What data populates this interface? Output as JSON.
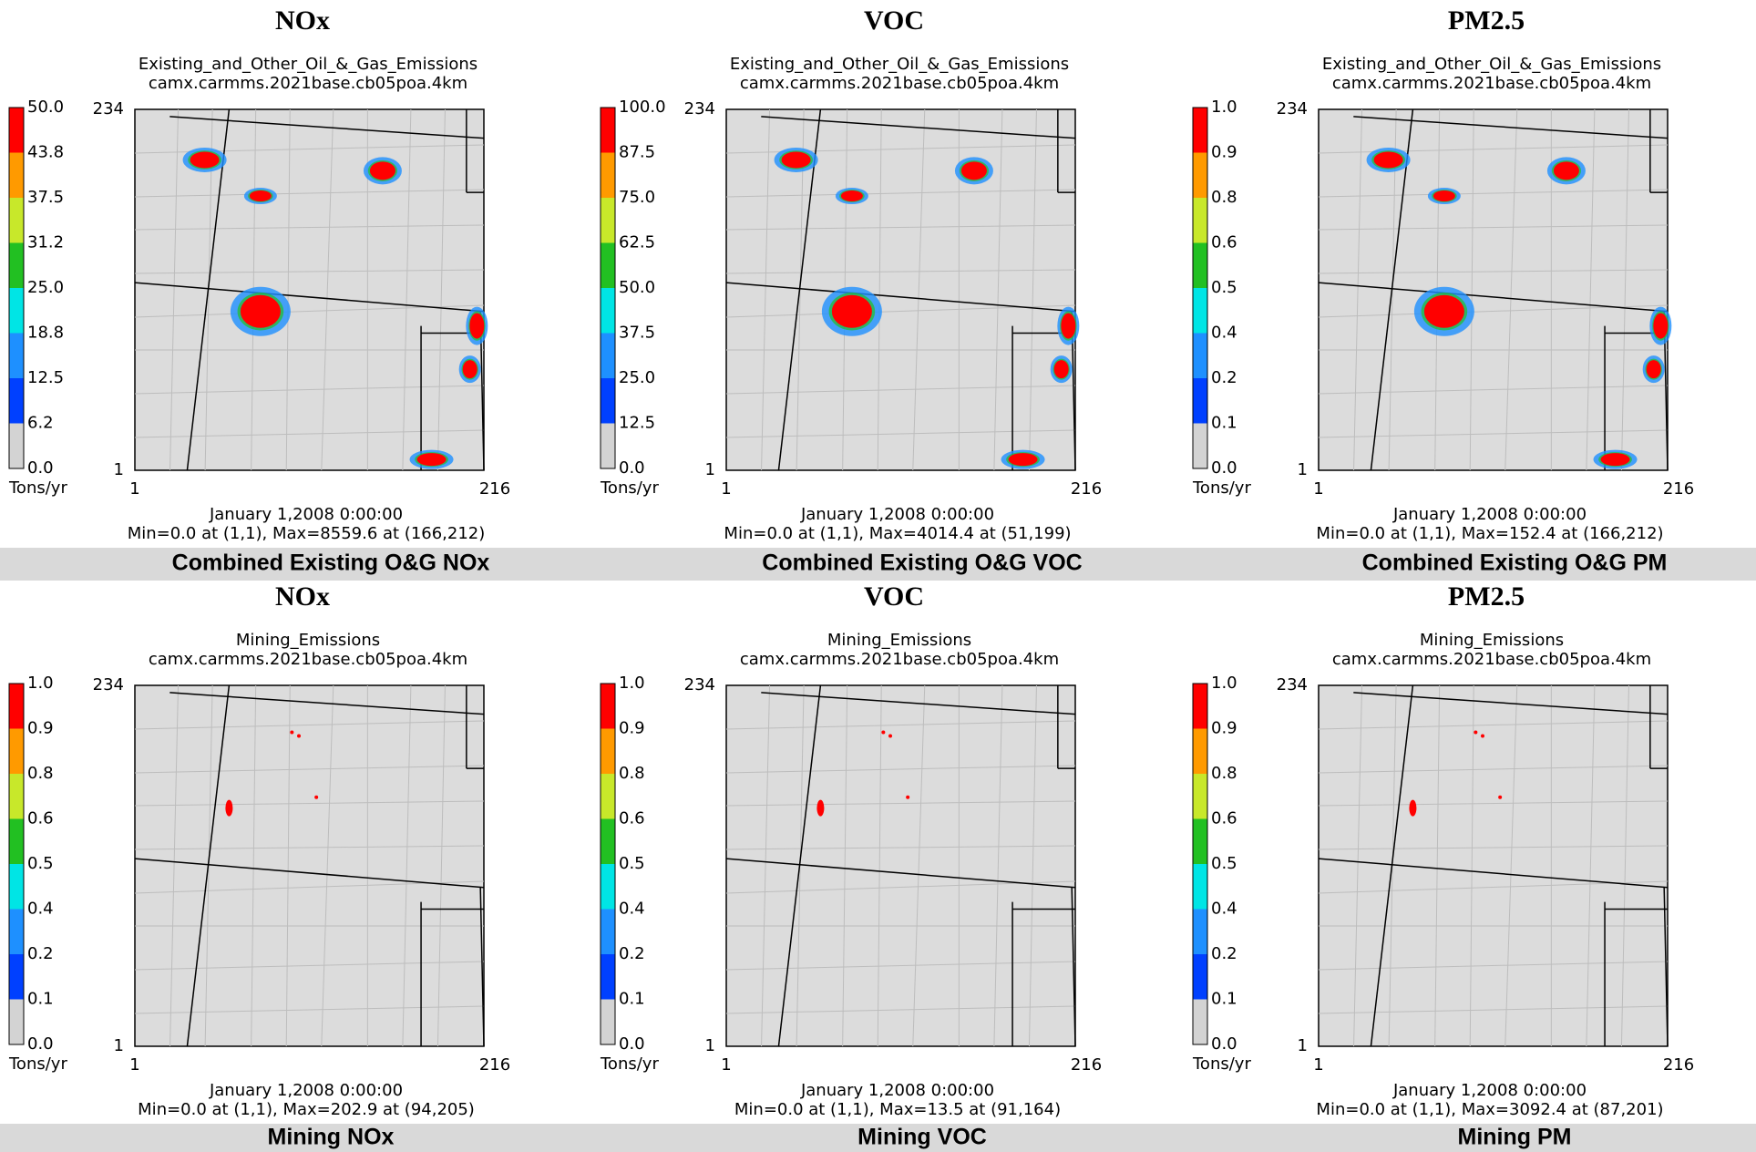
{
  "panels": [
    {
      "title": "NOx",
      "subtitle": [
        "Existing_and_Other_Oil_&_Gas_Emissions",
        "camx.carmms.2021base.cb05poa.4km"
      ],
      "colorbar_labels": [
        "50.0",
        "43.8",
        "37.5",
        "31.2",
        "25.0",
        "18.8",
        "12.5",
        "6.2",
        "0.0"
      ],
      "unit": "Tons/yr",
      "y_labels": [
        "234",
        "1"
      ],
      "x_labels": [
        "1",
        "216"
      ],
      "date": "January 1,2008 0:00:00",
      "stats": "Min=0.0 at (1,1), Max=8559.6 at (166,212)",
      "caption": "Combined Existing O&G NOx"
    },
    {
      "title": "VOC",
      "subtitle": [
        "Existing_and_Other_Oil_&_Gas_Emissions",
        "camx.carmms.2021base.cb05poa.4km"
      ],
      "colorbar_labels": [
        "100.0",
        "87.5",
        "75.0",
        "62.5",
        "50.0",
        "37.5",
        "25.0",
        "12.5",
        "0.0"
      ],
      "unit": "Tons/yr",
      "y_labels": [
        "234",
        "1"
      ],
      "x_labels": [
        "1",
        "216"
      ],
      "date": "January 1,2008 0:00:00",
      "stats": "Min=0.0 at (1,1), Max=4014.4 at (51,199)",
      "caption": "Combined Existing O&G VOC"
    },
    {
      "title": "PM2.5",
      "subtitle": [
        "Existing_and_Other_Oil_&_Gas_Emissions",
        "camx.carmms.2021base.cb05poa.4km"
      ],
      "colorbar_labels": [
        "1.0",
        "0.9",
        "0.8",
        "0.6",
        "0.5",
        "0.4",
        "0.2",
        "0.1",
        "0.0"
      ],
      "unit": "Tons/yr",
      "y_labels": [
        "234",
        "1"
      ],
      "x_labels": [
        "1",
        "216"
      ],
      "date": "January 1,2008 0:00:00",
      "stats": "Min=0.0 at (1,1), Max=152.4 at (166,212)",
      "caption": "Combined Existing O&G PM"
    },
    {
      "title": "NOx",
      "subtitle": [
        "Mining_Emissions",
        "camx.carmms.2021base.cb05poa.4km"
      ],
      "colorbar_labels": [
        "1.0",
        "0.9",
        "0.8",
        "0.6",
        "0.5",
        "0.4",
        "0.2",
        "0.1",
        "0.0"
      ],
      "unit": "Tons/yr",
      "y_labels": [
        "234",
        "1"
      ],
      "x_labels": [
        "1",
        "216"
      ],
      "date": "January 1,2008 0:00:00",
      "stats": "Min=0.0 at (1,1), Max=202.9 at (94,205)",
      "caption": "Mining NOx"
    },
    {
      "title": "VOC",
      "subtitle": [
        "Mining_Emissions",
        "camx.carmms.2021base.cb05poa.4km"
      ],
      "colorbar_labels": [
        "1.0",
        "0.9",
        "0.8",
        "0.6",
        "0.5",
        "0.4",
        "0.2",
        "0.1",
        "0.0"
      ],
      "unit": "Tons/yr",
      "y_labels": [
        "234",
        "1"
      ],
      "x_labels": [
        "1",
        "216"
      ],
      "date": "January 1,2008 0:00:00",
      "stats": "Min=0.0 at (1,1), Max=13.5 at (91,164)",
      "caption": "Mining VOC"
    },
    {
      "title": "PM2.5",
      "subtitle": [
        "Mining_Emissions",
        "camx.carmms.2021base.cb05poa.4km"
      ],
      "colorbar_labels": [
        "1.0",
        "0.9",
        "0.8",
        "0.6",
        "0.5",
        "0.4",
        "0.2",
        "0.1",
        "0.0"
      ],
      "unit": "Tons/yr",
      "y_labels": [
        "234",
        "1"
      ],
      "x_labels": [
        "1",
        "216"
      ],
      "date": "January 1,2008 0:00:00",
      "stats": "Min=0.0 at (1,1), Max=3092.4 at (87,201)",
      "caption": "Mining PM"
    }
  ]
}
